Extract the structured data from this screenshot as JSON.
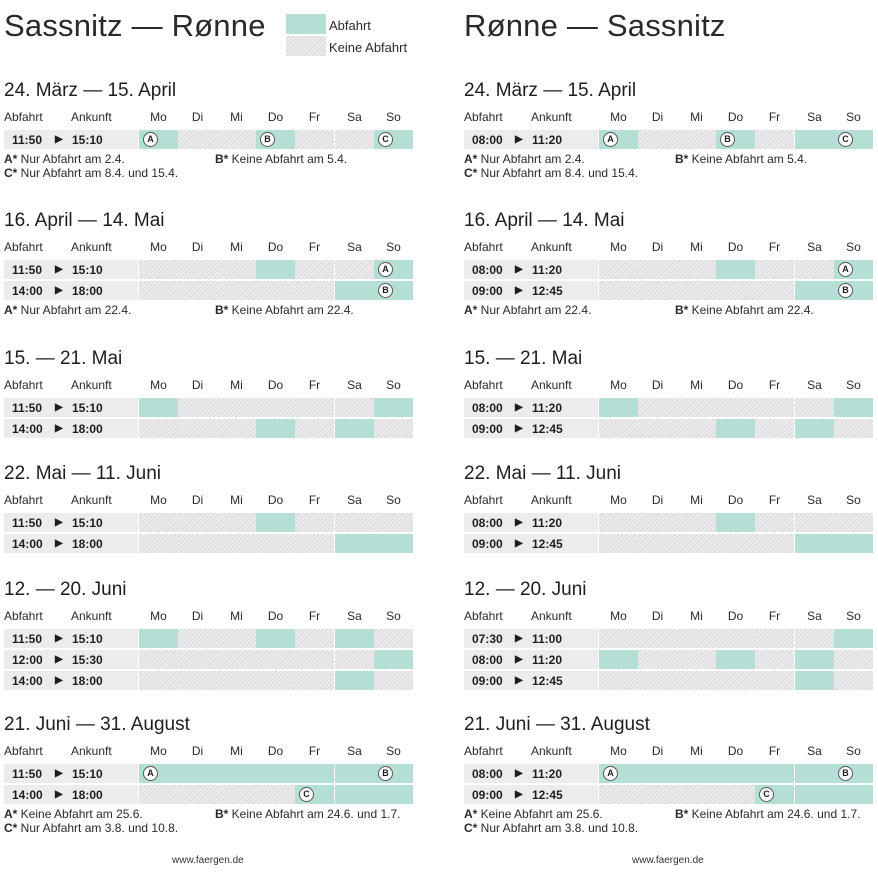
{
  "legend": {
    "abfahrt": "Abfahrt",
    "keine_abfahrt": "Keine Abfahrt"
  },
  "headers": {
    "abfahrt": "Abfahrt",
    "ankunft": "Ankunft"
  },
  "days": [
    "Mo",
    "Di",
    "Mi",
    "Do",
    "Fr",
    "Sa",
    "So"
  ],
  "footer": "www.faergen.de",
  "colors": {
    "abfahrt": "#b5ded5",
    "keine_abfahrt": "#d8d8dc",
    "times_bg": "#ececee"
  },
  "arrow_icon": "play-triangle-icon",
  "directions": [
    {
      "title": "Sassnitz — Rønne",
      "sections": [
        {
          "title": "24. März — 15. April",
          "rows": [
            {
              "dep": "11:50",
              "arr": "15:10",
              "days": [
                "A",
                "",
                "",
                "B",
                "",
                "",
                "C"
              ]
            }
          ],
          "notes": [
            {
              "key": "A*",
              "text": " Nur Abfahrt am 2.4."
            },
            {
              "key": "B*",
              "text": " Keine Abfahrt am 5.4."
            },
            {
              "key": "C*",
              "text": " Nur Abfahrt am 8.4. und 15.4."
            }
          ]
        },
        {
          "title": "16. April — 14. Mai",
          "rows": [
            {
              "dep": "11:50",
              "arr": "15:10",
              "days": [
                "",
                "",
                "",
                "on",
                "",
                "",
                "A"
              ]
            },
            {
              "dep": "14:00",
              "arr": "18:00",
              "days": [
                "",
                "",
                "",
                "",
                "",
                "on",
                "B"
              ]
            }
          ],
          "notes": [
            {
              "key": "A*",
              "text": " Nur Abfahrt am 22.4."
            },
            {
              "key": "B*",
              "text": " Keine Abfahrt am 22.4."
            }
          ]
        },
        {
          "title": "15. — 21. Mai",
          "rows": [
            {
              "dep": "11:50",
              "arr": "15:10",
              "days": [
                "on",
                "",
                "",
                "",
                "",
                "",
                "on"
              ]
            },
            {
              "dep": "14:00",
              "arr": "18:00",
              "days": [
                "",
                "",
                "",
                "on",
                "",
                "on",
                ""
              ]
            }
          ],
          "notes": []
        },
        {
          "title": "22. Mai — 11. Juni",
          "rows": [
            {
              "dep": "11:50",
              "arr": "15:10",
              "days": [
                "",
                "",
                "",
                "on",
                "",
                "",
                ""
              ]
            },
            {
              "dep": "14:00",
              "arr": "18:00",
              "days": [
                "",
                "",
                "",
                "",
                "",
                "on",
                "on"
              ]
            }
          ],
          "notes": []
        },
        {
          "title": "12. — 20. Juni",
          "rows": [
            {
              "dep": "11:50",
              "arr": "15:10",
              "days": [
                "on",
                "",
                "",
                "on",
                "",
                "on",
                ""
              ]
            },
            {
              "dep": "12:00",
              "arr": "15:30",
              "days": [
                "",
                "",
                "",
                "",
                "",
                "",
                "on"
              ]
            },
            {
              "dep": "14:00",
              "arr": "18:00",
              "days": [
                "",
                "",
                "",
                "",
                "",
                "on",
                ""
              ]
            }
          ],
          "notes": []
        },
        {
          "title": "21. Juni — 31. August",
          "rows": [
            {
              "dep": "11:50",
              "arr": "15:10",
              "days": [
                "A",
                "on",
                "on",
                "on",
                "on",
                "on",
                "B"
              ]
            },
            {
              "dep": "14:00",
              "arr": "18:00",
              "days": [
                "",
                "",
                "",
                "",
                "C",
                "on",
                "on"
              ]
            }
          ],
          "notes": [
            {
              "key": "A*",
              "text": " Keine Abfahrt am 25.6."
            },
            {
              "key": "B*",
              "text": " Keine Abfahrt am 24.6. und 1.7."
            },
            {
              "key": "C*",
              "text": " Nur Abfahrt am 3.8. und 10.8."
            }
          ]
        }
      ]
    },
    {
      "title": "Rønne — Sassnitz",
      "sections": [
        {
          "title": "24. März — 15. April",
          "rows": [
            {
              "dep": "08:00",
              "arr": "11:20",
              "days": [
                "A",
                "",
                "",
                "B",
                "",
                "on",
                "C"
              ]
            }
          ],
          "notes": [
            {
              "key": "A*",
              "text": " Nur Abfahrt am 2.4."
            },
            {
              "key": "B*",
              "text": " Keine Abfahrt am 5.4."
            },
            {
              "key": "C*",
              "text": " Nur Abfahrt am 8.4. und 15.4."
            }
          ]
        },
        {
          "title": "16. April — 14. Mai",
          "rows": [
            {
              "dep": "08:00",
              "arr": "11:20",
              "days": [
                "",
                "",
                "",
                "on",
                "",
                "",
                "A"
              ]
            },
            {
              "dep": "09:00",
              "arr": "12:45",
              "days": [
                "",
                "",
                "",
                "",
                "",
                "on",
                "B"
              ]
            }
          ],
          "notes": [
            {
              "key": "A*",
              "text": " Nur Abfahrt am 22.4."
            },
            {
              "key": "B*",
              "text": " Keine Abfahrt am 22.4."
            }
          ]
        },
        {
          "title": "15. — 21. Mai",
          "rows": [
            {
              "dep": "08:00",
              "arr": "11:20",
              "days": [
                "on",
                "",
                "",
                "",
                "",
                "",
                "on"
              ]
            },
            {
              "dep": "09:00",
              "arr": "12:45",
              "days": [
                "",
                "",
                "",
                "on",
                "",
                "on",
                ""
              ]
            }
          ],
          "notes": []
        },
        {
          "title": "22. Mai — 11. Juni",
          "rows": [
            {
              "dep": "08:00",
              "arr": "11:20",
              "days": [
                "",
                "",
                "",
                "on",
                "",
                "",
                ""
              ]
            },
            {
              "dep": "09:00",
              "arr": "12:45",
              "days": [
                "",
                "",
                "",
                "",
                "",
                "on",
                "on"
              ]
            }
          ],
          "notes": []
        },
        {
          "title": "12. — 20. Juni",
          "rows": [
            {
              "dep": "07:30",
              "arr": "11:00",
              "days": [
                "",
                "",
                "",
                "",
                "",
                "",
                "on"
              ]
            },
            {
              "dep": "08:00",
              "arr": "11:20",
              "days": [
                "on",
                "",
                "",
                "on",
                "",
                "on",
                ""
              ]
            },
            {
              "dep": "09:00",
              "arr": "12:45",
              "days": [
                "",
                "",
                "",
                "",
                "",
                "on",
                ""
              ]
            }
          ],
          "notes": []
        },
        {
          "title": "21. Juni — 31. August",
          "rows": [
            {
              "dep": "08:00",
              "arr": "11:20",
              "days": [
                "A",
                "on",
                "on",
                "on",
                "on",
                "on",
                "B"
              ]
            },
            {
              "dep": "09:00",
              "arr": "12:45",
              "days": [
                "",
                "",
                "",
                "",
                "C",
                "on",
                "on"
              ]
            }
          ],
          "notes": [
            {
              "key": "A*",
              "text": " Keine Abfahrt am 25.6."
            },
            {
              "key": "B*",
              "text": " Keine Abfahrt am 24.6. und 1.7."
            },
            {
              "key": "C*",
              "text": " Nur Abfahrt am 3.8. und 10.8."
            }
          ]
        }
      ]
    }
  ]
}
